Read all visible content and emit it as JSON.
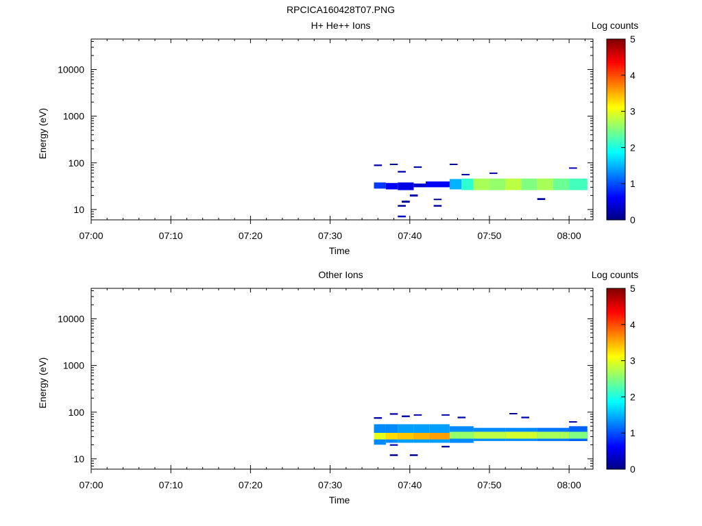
{
  "figure_title": "RPCICA160428T07.PNG",
  "panels": [
    {
      "title": "H+ He++ Ions",
      "ylabel": "Energy (eV)",
      "xlabel": "Time",
      "colorbar_label": "Log counts"
    },
    {
      "title": "Other Ions",
      "ylabel": "Energy (eV)",
      "xlabel": "Time",
      "colorbar_label": "Log counts"
    }
  ],
  "chart_data": [
    {
      "type": "heatmap",
      "title": "H+ He++ Ions",
      "xlabel": "Time",
      "ylabel": "Energy (eV)",
      "colorbar_label": "Log counts",
      "x_ticks": [
        "07:00",
        "07:10",
        "07:20",
        "07:30",
        "07:40",
        "07:50",
        "08:00"
      ],
      "xlim_minutes": [
        0,
        63
      ],
      "y_scale": "log",
      "y_ticks": [
        10,
        100,
        1000,
        10000
      ],
      "ylim": [
        6,
        45000
      ],
      "colorbar_ticks": [
        0,
        1,
        2,
        3,
        4,
        5
      ],
      "colorbar_range": [
        0,
        5
      ],
      "colormap": "jet",
      "cells": [
        {
          "t": [
            35.5,
            37.0
          ],
          "e": [
            28,
            38
          ],
          "v": 0.9
        },
        {
          "t": [
            37.0,
            38.5
          ],
          "e": [
            27,
            37
          ],
          "v": 0.6
        },
        {
          "t": [
            38.5,
            40.5
          ],
          "e": [
            26,
            38
          ],
          "v": 0.5
        },
        {
          "t": [
            40.5,
            42.0
          ],
          "e": [
            30,
            36
          ],
          "v": 0.4
        },
        {
          "t": [
            42.0,
            45.0
          ],
          "e": [
            30,
            40
          ],
          "v": 0.6
        },
        {
          "t": [
            45.0,
            46.5
          ],
          "e": [
            27,
            45
          ],
          "v": 1.5
        },
        {
          "t": [
            46.5,
            48.0
          ],
          "e": [
            26,
            46
          ],
          "v": 2.1
        },
        {
          "t": [
            48.0,
            50.0
          ],
          "e": [
            26,
            46
          ],
          "v": 2.7
        },
        {
          "t": [
            50.0,
            52.0
          ],
          "e": [
            26,
            46
          ],
          "v": 2.6
        },
        {
          "t": [
            52.0,
            54.0
          ],
          "e": [
            26,
            46
          ],
          "v": 2.8
        },
        {
          "t": [
            54.0,
            56.0
          ],
          "e": [
            26,
            46
          ],
          "v": 2.5
        },
        {
          "t": [
            56.0,
            58.0
          ],
          "e": [
            26,
            46
          ],
          "v": 2.7
        },
        {
          "t": [
            58.0,
            60.0
          ],
          "e": [
            26,
            46
          ],
          "v": 2.4
        },
        {
          "t": [
            60.0,
            62.3
          ],
          "e": [
            26,
            46
          ],
          "v": 2.2
        },
        {
          "t": [
            35.5,
            36.5
          ],
          "e": [
            85,
            92
          ],
          "v": 0.2
        },
        {
          "t": [
            37.5,
            38.5
          ],
          "e": [
            90,
            96
          ],
          "v": 0.1
        },
        {
          "t": [
            38.5,
            39.5
          ],
          "e": [
            62,
            67
          ],
          "v": 0.2
        },
        {
          "t": [
            40.5,
            41.5
          ],
          "e": [
            78,
            84
          ],
          "v": 0.2
        },
        {
          "t": [
            39.0,
            40.0
          ],
          "e": [
            14,
            15.5
          ],
          "v": 0.1
        },
        {
          "t": [
            38.5,
            39.5
          ],
          "e": [
            11.5,
            12.5
          ],
          "v": 0.1
        },
        {
          "t": [
            38.5,
            39.5
          ],
          "e": [
            6.8,
            7.4
          ],
          "v": 0.3
        },
        {
          "t": [
            40.0,
            41.0
          ],
          "e": [
            19,
            21
          ],
          "v": 0.2
        },
        {
          "t": [
            43.0,
            44.0
          ],
          "e": [
            16,
            17
          ],
          "v": 0.1
        },
        {
          "t": [
            43.0,
            44.0
          ],
          "e": [
            11.5,
            12.5
          ],
          "v": 0.2
        },
        {
          "t": [
            45.0,
            46.0
          ],
          "e": [
            90,
            96
          ],
          "v": 0.1
        },
        {
          "t": [
            46.5,
            47.5
          ],
          "e": [
            54,
            58
          ],
          "v": 0.2
        },
        {
          "t": [
            50.0,
            51.0
          ],
          "e": [
            58,
            62
          ],
          "v": 0.2
        },
        {
          "t": [
            56.0,
            57.0
          ],
          "e": [
            16,
            17.5
          ],
          "v": 0.2
        },
        {
          "t": [
            60.0,
            61.0
          ],
          "e": [
            75,
            80
          ],
          "v": 0.2
        }
      ]
    },
    {
      "type": "heatmap",
      "title": "Other Ions",
      "xlabel": "Time",
      "ylabel": "Energy (eV)",
      "colorbar_label": "Log counts",
      "x_ticks": [
        "07:00",
        "07:10",
        "07:20",
        "07:30",
        "07:40",
        "07:50",
        "08:00"
      ],
      "xlim_minutes": [
        0,
        63
      ],
      "y_scale": "log",
      "y_ticks": [
        10,
        100,
        1000,
        10000
      ],
      "ylim": [
        6,
        45000
      ],
      "colorbar_ticks": [
        0,
        1,
        2,
        3,
        4,
        5
      ],
      "colorbar_range": [
        0,
        5
      ],
      "colormap": "jet",
      "cells": [
        {
          "t": [
            35.5,
            37.0
          ],
          "e": [
            20,
            55
          ],
          "v": 1.3
        },
        {
          "t": [
            37.0,
            38.5
          ],
          "e": [
            22,
            55
          ],
          "v": 1.3
        },
        {
          "t": [
            38.5,
            40.5
          ],
          "e": [
            22,
            55
          ],
          "v": 1.4
        },
        {
          "t": [
            40.5,
            42.5
          ],
          "e": [
            22,
            55
          ],
          "v": 1.4
        },
        {
          "t": [
            42.5,
            45.0
          ],
          "e": [
            22,
            55
          ],
          "v": 1.4
        },
        {
          "t": [
            45.0,
            48.0
          ],
          "e": [
            22,
            50
          ],
          "v": 1.3
        },
        {
          "t": [
            48.0,
            52.0
          ],
          "e": [
            24,
            46
          ],
          "v": 1.3
        },
        {
          "t": [
            52.0,
            56.0
          ],
          "e": [
            24,
            46
          ],
          "v": 1.3
        },
        {
          "t": [
            56.0,
            60.0
          ],
          "e": [
            24,
            46
          ],
          "v": 1.2
        },
        {
          "t": [
            60.0,
            62.3
          ],
          "e": [
            24,
            50
          ],
          "v": 1.1
        },
        {
          "t": [
            35.5,
            37.0
          ],
          "e": [
            26,
            36
          ],
          "v": 3.0
        },
        {
          "t": [
            37.0,
            38.5
          ],
          "e": [
            26,
            36
          ],
          "v": 3.3
        },
        {
          "t": [
            38.5,
            40.5
          ],
          "e": [
            26,
            36
          ],
          "v": 3.4
        },
        {
          "t": [
            40.5,
            42.5
          ],
          "e": [
            26,
            36
          ],
          "v": 3.5
        },
        {
          "t": [
            42.5,
            45.0
          ],
          "e": [
            26,
            36
          ],
          "v": 3.6
        },
        {
          "t": [
            45.0,
            48.0
          ],
          "e": [
            27,
            38
          ],
          "v": 2.6
        },
        {
          "t": [
            48.0,
            52.0
          ],
          "e": [
            27,
            38
          ],
          "v": 2.8
        },
        {
          "t": [
            52.0,
            56.0
          ],
          "e": [
            27,
            38
          ],
          "v": 2.9
        },
        {
          "t": [
            56.0,
            60.0
          ],
          "e": [
            27,
            38
          ],
          "v": 2.7
        },
        {
          "t": [
            60.0,
            62.3
          ],
          "e": [
            27,
            38
          ],
          "v": 2.5
        },
        {
          "t": [
            35.5,
            36.5
          ],
          "e": [
            72,
            78
          ],
          "v": 0.2
        },
        {
          "t": [
            37.5,
            38.5
          ],
          "e": [
            88,
            95
          ],
          "v": 0.2
        },
        {
          "t": [
            39.0,
            40.0
          ],
          "e": [
            78,
            85
          ],
          "v": 0.2
        },
        {
          "t": [
            40.5,
            41.5
          ],
          "e": [
            84,
            90
          ],
          "v": 0.2
        },
        {
          "t": [
            44.0,
            45.0
          ],
          "e": [
            84,
            90
          ],
          "v": 0.2
        },
        {
          "t": [
            46.0,
            47.0
          ],
          "e": [
            74,
            80
          ],
          "v": 0.2
        },
        {
          "t": [
            52.5,
            53.5
          ],
          "e": [
            90,
            96
          ],
          "v": 0.1
        },
        {
          "t": [
            54.0,
            55.0
          ],
          "e": [
            74,
            80
          ],
          "v": 0.2
        },
        {
          "t": [
            60.0,
            61.0
          ],
          "e": [
            60,
            64
          ],
          "v": 0.2
        },
        {
          "t": [
            37.5,
            38.5
          ],
          "e": [
            19,
            20.5
          ],
          "v": 0.2
        },
        {
          "t": [
            37.5,
            38.5
          ],
          "e": [
            11.5,
            12.5
          ],
          "v": 0.1
        },
        {
          "t": [
            40.0,
            41.0
          ],
          "e": [
            11.5,
            12.5
          ],
          "v": 0.1
        },
        {
          "t": [
            44.0,
            45.0
          ],
          "e": [
            17.5,
            19
          ],
          "v": 0.1
        }
      ]
    }
  ]
}
